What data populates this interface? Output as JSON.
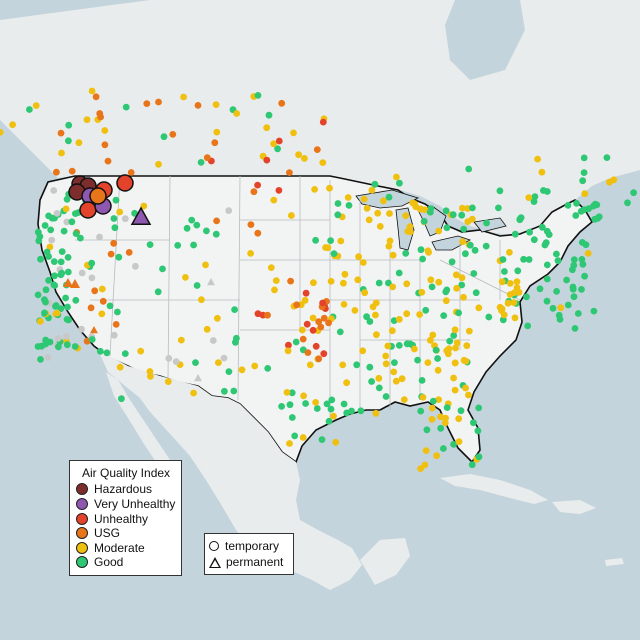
{
  "legend": {
    "title": "Air Quality Index",
    "categories": [
      {
        "label": "Hazardous",
        "color": "#7e2d2d"
      },
      {
        "label": "Very Unhealthy",
        "color": "#8e57b0"
      },
      {
        "label": "Unhealthy",
        "color": "#e2432a"
      },
      {
        "label": "USG",
        "color": "#e8751a"
      },
      {
        "label": "Moderate",
        "color": "#f0c010"
      },
      {
        "label": "Good",
        "color": "#2ec774"
      }
    ]
  },
  "type_legend": {
    "temporary": "temporary",
    "permanent": "permanent"
  },
  "colors": {
    "water": "#c4d4dc",
    "land": "#eef0f0",
    "border": "#111111",
    "state_line": "#b8bcc0",
    "no_data": "#c8c8c8"
  }
}
